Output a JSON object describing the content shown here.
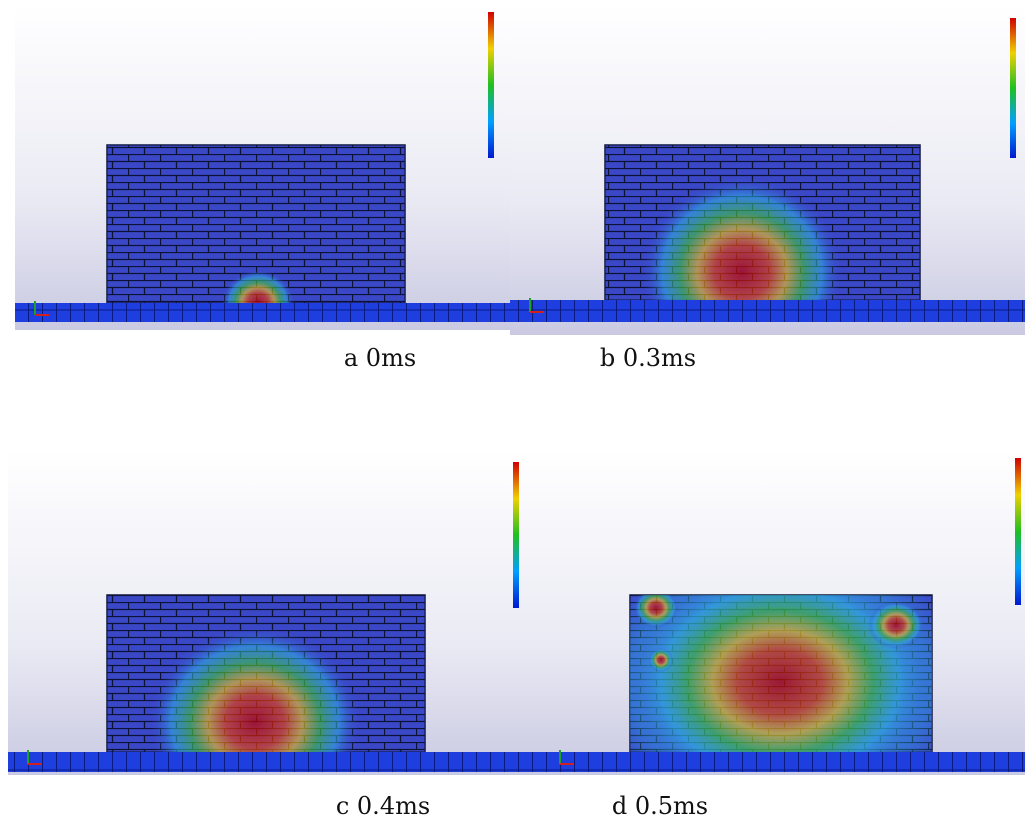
{
  "figure": {
    "panels": [
      {
        "caption": "a 0ms"
      },
      {
        "caption": "b 0.3ms"
      },
      {
        "caption": "c 0.4ms"
      },
      {
        "caption": "d 0.5ms"
      }
    ]
  }
}
